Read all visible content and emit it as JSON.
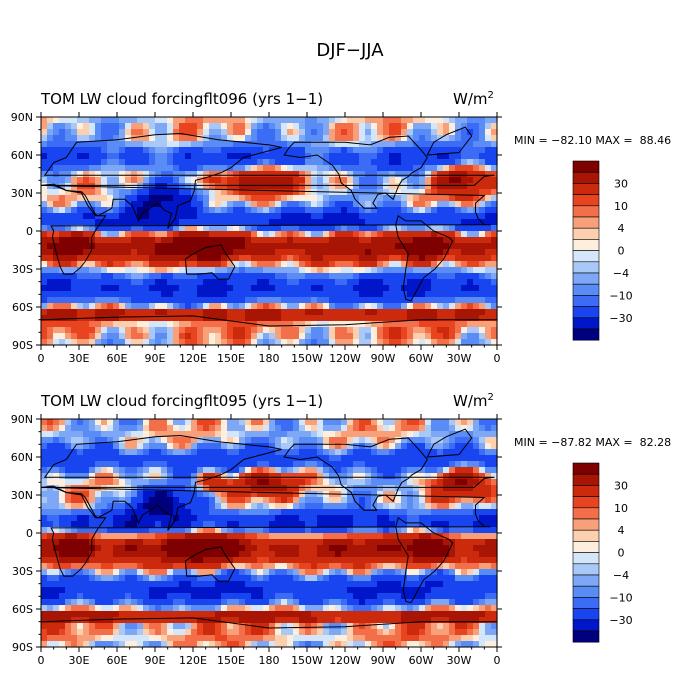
{
  "figure": {
    "title": "DJF−JJA",
    "color_levels": [
      "#00007f",
      "#0016c8",
      "#1845f0",
      "#3c6cf5",
      "#5a8cf5",
      "#7ea8f5",
      "#a8c8f8",
      "#d4e6fa",
      "#fdeede",
      "#fccfae",
      "#f7a07a",
      "#f36f4a",
      "#e84420",
      "#cc2a0c",
      "#a81505",
      "#7e0000"
    ],
    "colorbar_labels": [
      "30",
      "10",
      "4",
      "0",
      "−4",
      "−10",
      "−30"
    ]
  },
  "chart_data": [
    {
      "type": "heatmap",
      "title": "TOM LW cloud forcingflt096 (yrs 1−1)",
      "units": "W/m",
      "units_exp": "2",
      "stats": "MIN = −82.10 MAX =  88.46",
      "x_ticks": [
        "0",
        "30E",
        "60E",
        "90E",
        "120E",
        "150E",
        "180",
        "150W",
        "120W",
        "90W",
        "60W",
        "30W",
        "0"
      ],
      "y_ticks": [
        "90N",
        "60N",
        "30N",
        "0",
        "30S",
        "60S",
        "90S"
      ],
      "x_range": [
        0,
        360
      ],
      "y_range": [
        -90,
        90
      ],
      "contour_levels": [
        -30,
        -20,
        -10,
        -7,
        -4,
        -2,
        -1,
        0,
        1,
        2,
        4,
        7,
        10,
        20,
        30
      ],
      "seed": 7
    },
    {
      "type": "heatmap",
      "title": "TOM LW cloud forcingflt095 (yrs 1−1)",
      "units": "W/m",
      "units_exp": "2",
      "stats": "MIN = −87.82 MAX =  82.28",
      "x_ticks": [
        "0",
        "30E",
        "60E",
        "90E",
        "120E",
        "150E",
        "180",
        "150W",
        "120W",
        "90W",
        "60W",
        "30W",
        "0"
      ],
      "y_ticks": [
        "90N",
        "60N",
        "30N",
        "0",
        "30S",
        "60S",
        "90S"
      ],
      "x_range": [
        0,
        360
      ],
      "y_range": [
        -90,
        90
      ],
      "contour_levels": [
        -30,
        -20,
        -10,
        -7,
        -4,
        -2,
        -1,
        0,
        1,
        2,
        4,
        7,
        10,
        20,
        30
      ],
      "seed": 13
    }
  ]
}
